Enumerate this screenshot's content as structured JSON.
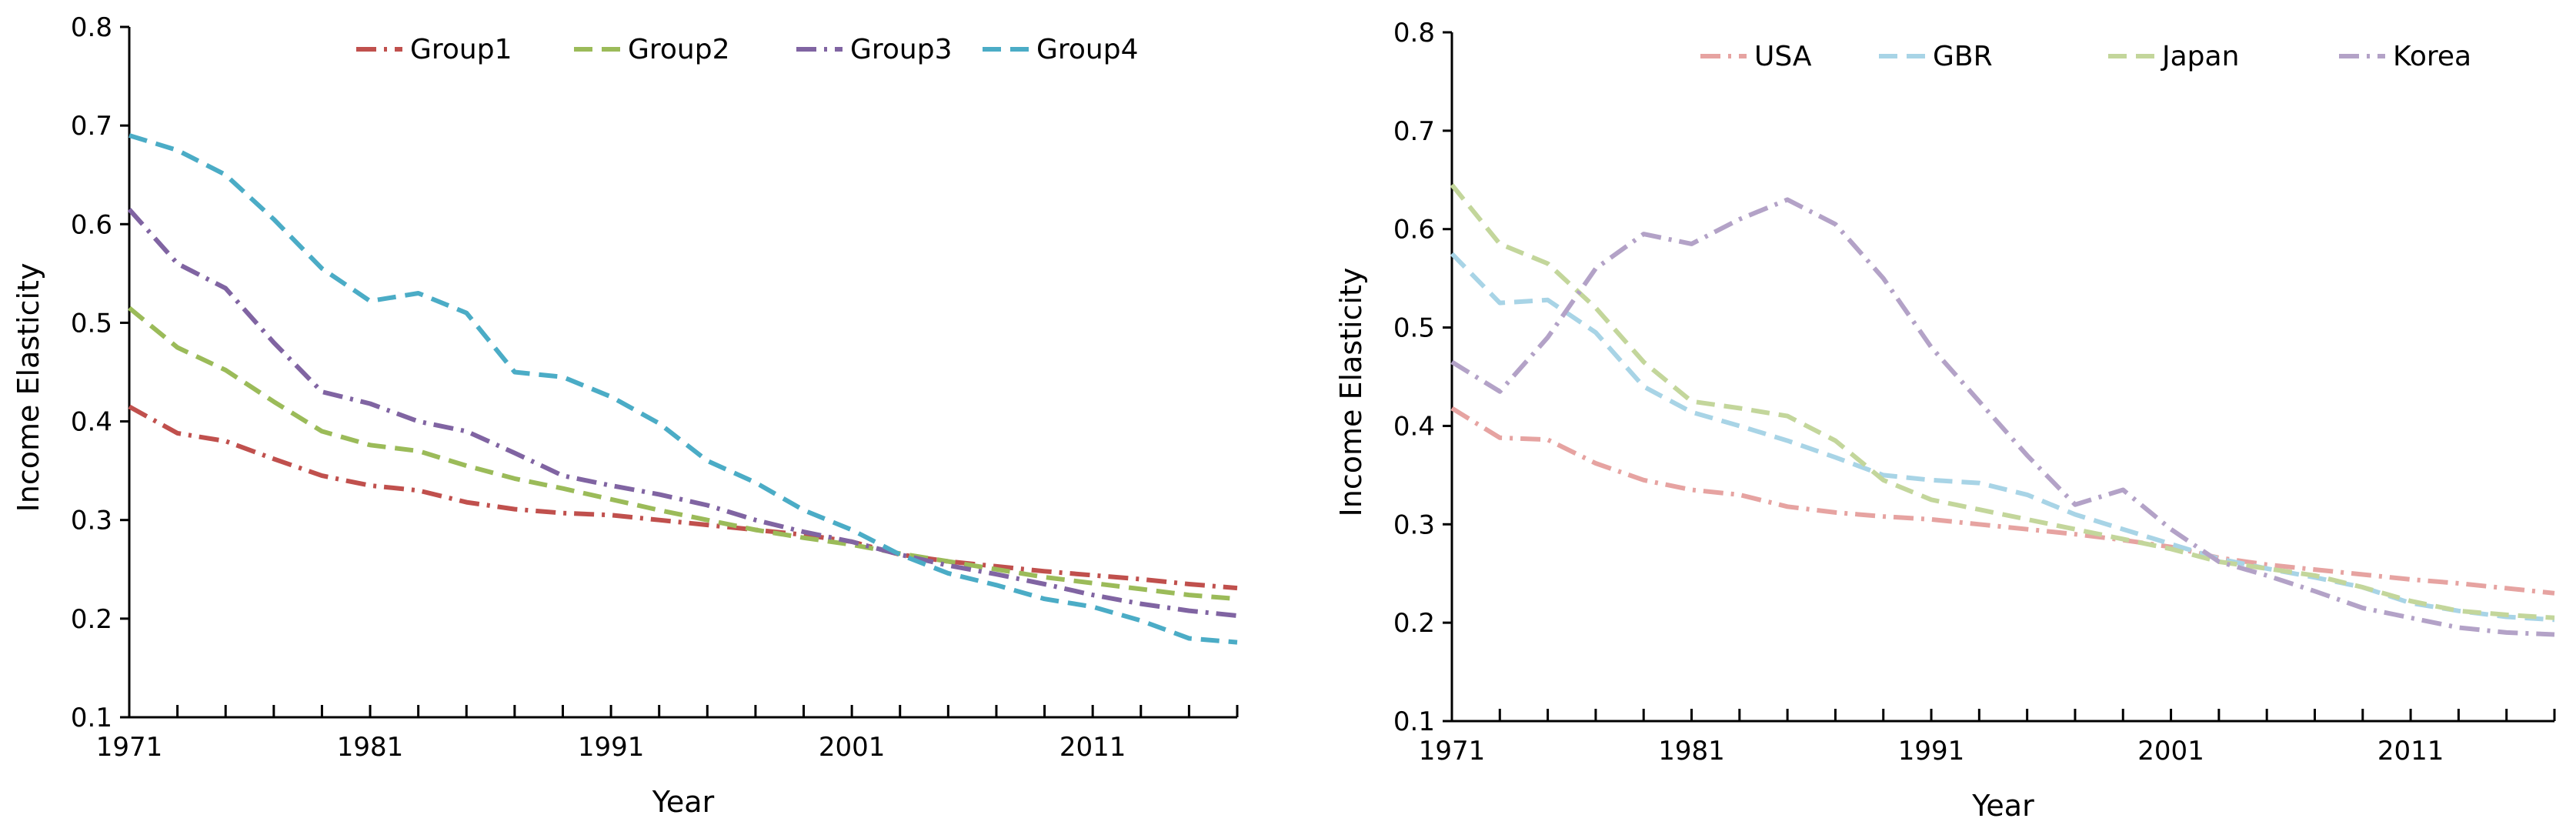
{
  "chart_data": [
    {
      "type": "line",
      "title": "",
      "xlabel": "Year",
      "ylabel": "Income Elasticity",
      "xlim": [
        1971,
        2017
      ],
      "ylim": [
        0.1,
        0.8
      ],
      "x_tick_labels": [
        "1971",
        "1981",
        "1991",
        "2001",
        "2011"
      ],
      "y_tick_labels": [
        "0.1",
        "0.2",
        "0.3",
        "0.4",
        "0.5",
        "0.6",
        "0.7",
        "0.8"
      ],
      "legend_position": "top-center",
      "x": [
        1971,
        1973,
        1975,
        1977,
        1979,
        1981,
        1983,
        1985,
        1987,
        1989,
        1991,
        1993,
        1995,
        1997,
        1999,
        2001,
        2003,
        2005,
        2007,
        2009,
        2011,
        2013,
        2015,
        2017
      ],
      "series": [
        {
          "name": "Group1",
          "color": "#c0504d",
          "dash": "dashdot",
          "values": [
            0.415,
            0.388,
            0.38,
            0.362,
            0.345,
            0.335,
            0.33,
            0.318,
            0.311,
            0.307,
            0.305,
            0.3,
            0.295,
            0.29,
            0.285,
            0.278,
            0.265,
            0.258,
            0.253,
            0.248,
            0.244,
            0.24,
            0.235,
            0.231
          ]
        },
        {
          "name": "Group2",
          "color": "#9bbb59",
          "dash": "dash",
          "values": [
            0.515,
            0.475,
            0.452,
            0.42,
            0.39,
            0.376,
            0.37,
            0.355,
            0.342,
            0.332,
            0.321,
            0.31,
            0.3,
            0.29,
            0.282,
            0.275,
            0.266,
            0.258,
            0.25,
            0.242,
            0.236,
            0.23,
            0.224,
            0.22
          ]
        },
        {
          "name": "Group3",
          "color": "#8064a2",
          "dash": "dashdot",
          "values": [
            0.615,
            0.56,
            0.535,
            0.48,
            0.43,
            0.418,
            0.4,
            0.39,
            0.368,
            0.345,
            0.335,
            0.326,
            0.315,
            0.3,
            0.288,
            0.278,
            0.265,
            0.254,
            0.245,
            0.235,
            0.224,
            0.215,
            0.208,
            0.203
          ]
        },
        {
          "name": "Group4",
          "color": "#4bacc6",
          "dash": "dash",
          "values": [
            0.69,
            0.675,
            0.65,
            0.605,
            0.555,
            0.522,
            0.53,
            0.51,
            0.45,
            0.445,
            0.425,
            0.398,
            0.36,
            0.338,
            0.31,
            0.29,
            0.265,
            0.246,
            0.234,
            0.22,
            0.212,
            0.198,
            0.18,
            0.176
          ]
        }
      ]
    },
    {
      "type": "line",
      "title": "",
      "xlabel": "Year",
      "ylabel": "Income Elasticity",
      "xlim": [
        1971,
        2017
      ],
      "ylim": [
        0.1,
        0.8
      ],
      "x_tick_labels": [
        "1971",
        "1981",
        "1991",
        "2001",
        "2011"
      ],
      "y_tick_labels": [
        "0.1",
        "0.2",
        "0.3",
        "0.4",
        "0.5",
        "0.6",
        "0.7",
        "0.8"
      ],
      "legend_position": "top-center",
      "x": [
        1971,
        1973,
        1975,
        1977,
        1979,
        1981,
        1983,
        1985,
        1987,
        1989,
        1991,
        1993,
        1995,
        1997,
        1999,
        2001,
        2003,
        2005,
        2007,
        2009,
        2011,
        2013,
        2015,
        2017
      ],
      "series": [
        {
          "name": "USA",
          "color": "#e6a3a1",
          "dash": "dashdot",
          "values": [
            0.418,
            0.388,
            0.386,
            0.362,
            0.345,
            0.335,
            0.33,
            0.318,
            0.312,
            0.308,
            0.305,
            0.3,
            0.295,
            0.29,
            0.284,
            0.277,
            0.266,
            0.259,
            0.254,
            0.249,
            0.244,
            0.24,
            0.235,
            0.23
          ]
        },
        {
          "name": "GBR",
          "color": "#a8d4e6",
          "dash": "dash",
          "values": [
            0.575,
            0.525,
            0.528,
            0.495,
            0.44,
            0.414,
            0.4,
            0.385,
            0.368,
            0.35,
            0.345,
            0.342,
            0.33,
            0.31,
            0.295,
            0.28,
            0.265,
            0.255,
            0.246,
            0.236,
            0.22,
            0.212,
            0.206,
            0.203
          ]
        },
        {
          "name": "Japan",
          "color": "#c3d69b",
          "dash": "dash",
          "values": [
            0.645,
            0.585,
            0.565,
            0.52,
            0.465,
            0.425,
            0.418,
            0.41,
            0.385,
            0.345,
            0.325,
            0.315,
            0.305,
            0.295,
            0.285,
            0.275,
            0.262,
            0.255,
            0.248,
            0.236,
            0.222,
            0.212,
            0.208,
            0.205
          ]
        },
        {
          "name": "Korea",
          "color": "#b3a2c7",
          "dash": "dashdot",
          "values": [
            0.465,
            0.435,
            0.49,
            0.56,
            0.595,
            0.585,
            0.61,
            0.63,
            0.605,
            0.55,
            0.48,
            0.425,
            0.37,
            0.32,
            0.335,
            0.295,
            0.262,
            0.248,
            0.232,
            0.215,
            0.205,
            0.195,
            0.19,
            0.188
          ]
        }
      ]
    }
  ]
}
